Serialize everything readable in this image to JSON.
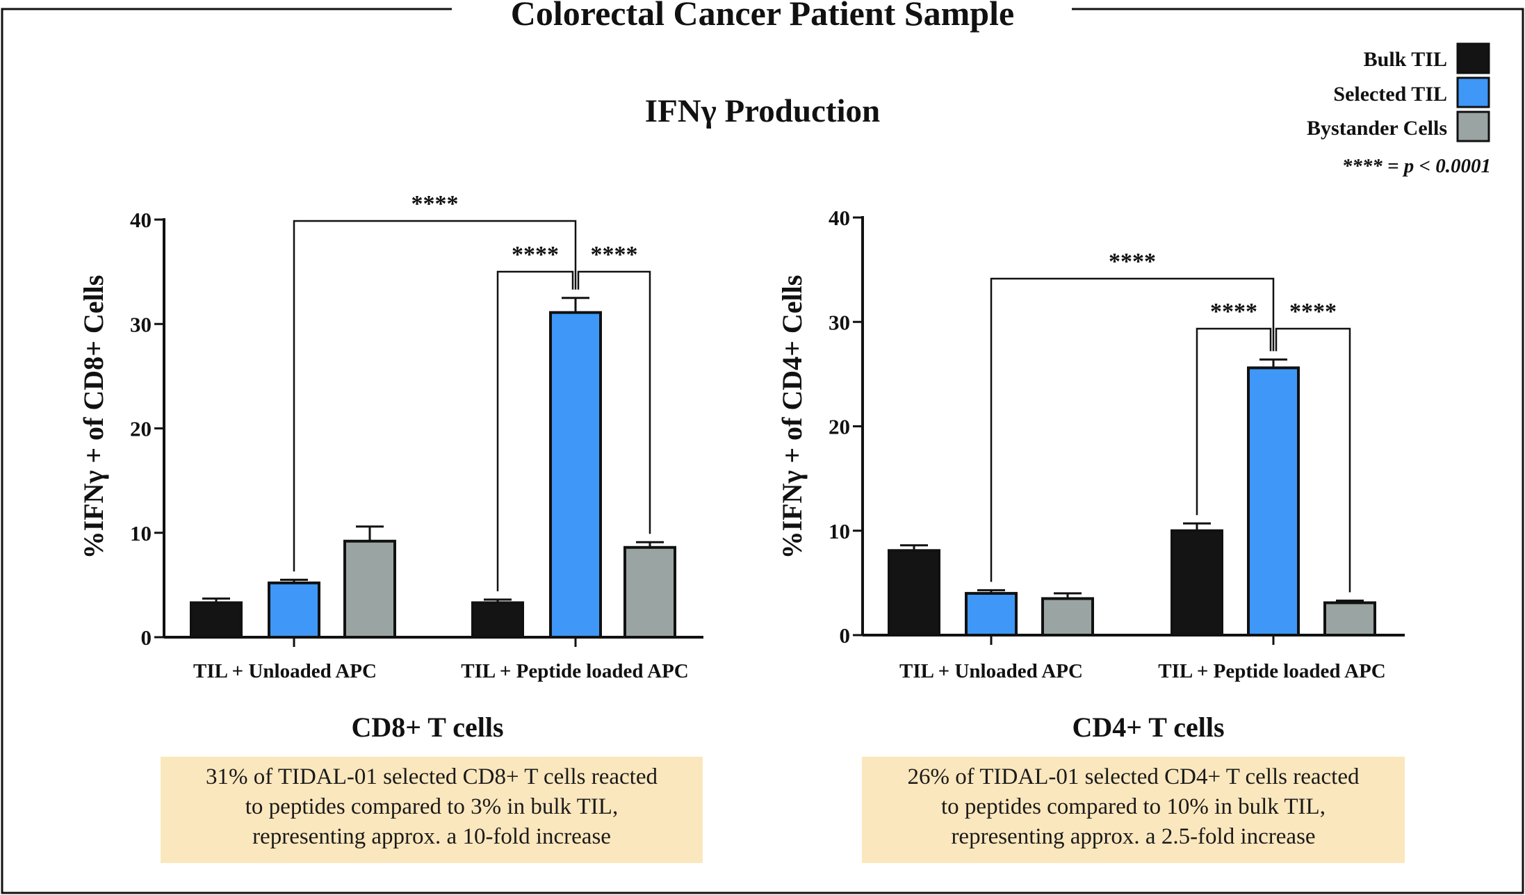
{
  "figure": {
    "title": "Colorectal Cancer Patient Sample",
    "subtitle": "IFNγ  Production",
    "significance_note": "**** = p < 0.0001",
    "colors": {
      "bulk": "#141414",
      "selected": "#3f97f7",
      "bystander": "#9aa4a2",
      "note_bg": "#fbe7bd"
    }
  },
  "legend": {
    "items": [
      {
        "label": "Bulk TIL",
        "color": "#141414"
      },
      {
        "label": "Selected TIL",
        "color": "#3f97f7"
      },
      {
        "label": "Bystander Cells",
        "color": "#9aa4a2"
      }
    ]
  },
  "chart_data": [
    {
      "type": "bar",
      "title": "CD8+ T cells",
      "ylabel": "%IFNγ + of CD8+ Cells",
      "xlabel": "",
      "ylim": [
        0,
        40
      ],
      "yticks": [
        "0",
        "10",
        "20",
        "30",
        "40"
      ],
      "categories": [
        "TIL + Unloaded APC",
        "TIL + Peptide loaded APC"
      ],
      "series": [
        {
          "name": "Bulk TIL",
          "values": [
            3.3,
            3.3
          ],
          "errors": [
            0.4,
            0.3
          ]
        },
        {
          "name": "Selected TIL",
          "values": [
            5.2,
            31.1
          ],
          "errors": [
            0.3,
            1.4
          ]
        },
        {
          "name": "Bystander Cells",
          "values": [
            9.2,
            8.6
          ],
          "errors": [
            1.4,
            0.5
          ]
        }
      ],
      "significance": [
        {
          "label": "****",
          "from": [
            0,
            1
          ],
          "to": [
            1,
            1
          ]
        },
        {
          "label": "****",
          "from": [
            1,
            0
          ],
          "to": [
            1,
            1
          ]
        },
        {
          "label": "****",
          "from": [
            1,
            1
          ],
          "to": [
            1,
            2
          ]
        }
      ],
      "note_lines": [
        "31% of TIDAL-01 selected CD8+ T cells reacted",
        "to peptides compared to 3% in bulk TIL,",
        "representing approx. a 10-fold increase"
      ]
    },
    {
      "type": "bar",
      "title": "CD4+ T cells",
      "ylabel": "%IFNγ + of CD4+ Cells",
      "xlabel": "",
      "ylim": [
        0,
        40
      ],
      "yticks": [
        "0",
        "10",
        "20",
        "30",
        "40"
      ],
      "categories": [
        "TIL + Unloaded APC",
        "TIL + Peptide loaded APC"
      ],
      "series": [
        {
          "name": "Bulk TIL",
          "values": [
            8.1,
            10.0
          ],
          "errors": [
            0.5,
            0.7
          ]
        },
        {
          "name": "Selected TIL",
          "values": [
            4.0,
            25.6
          ],
          "errors": [
            0.3,
            0.8
          ]
        },
        {
          "name": "Bystander Cells",
          "values": [
            3.5,
            3.1
          ],
          "errors": [
            0.5,
            0.2
          ]
        }
      ],
      "significance": [
        {
          "label": "****",
          "from": [
            0,
            1
          ],
          "to": [
            1,
            1
          ]
        },
        {
          "label": "****",
          "from": [
            1,
            0
          ],
          "to": [
            1,
            1
          ]
        },
        {
          "label": "****",
          "from": [
            1,
            1
          ],
          "to": [
            1,
            2
          ]
        }
      ],
      "note_lines": [
        "26% of TIDAL-01 selected CD4+ T cells reacted",
        "to peptides compared to 10% in bulk TIL,",
        "representing approx. a 2.5-fold increase"
      ]
    }
  ]
}
